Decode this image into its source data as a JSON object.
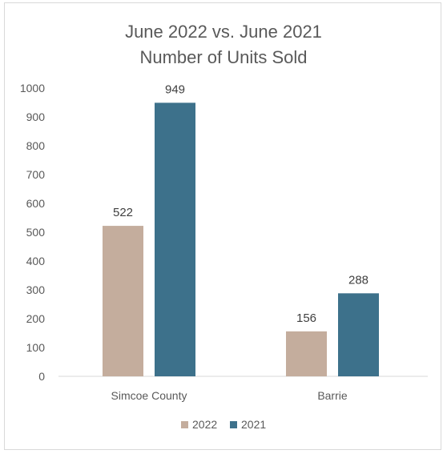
{
  "chart_data": {
    "type": "bar",
    "title": [
      "June 2022 vs. June 2021",
      "Number of Units Sold"
    ],
    "categories": [
      "Simcoe County",
      "Barrie"
    ],
    "series": [
      {
        "name": "2022",
        "values": [
          522,
          156
        ],
        "color": "#c4ad9d"
      },
      {
        "name": "2021",
        "values": [
          949,
          288
        ],
        "color": "#3d718b"
      }
    ],
    "ylim": [
      0,
      1000
    ],
    "yticks": [
      0,
      100,
      200,
      300,
      400,
      500,
      600,
      700,
      800,
      900,
      1000
    ],
    "xlabel": "",
    "ylabel": "",
    "grid": false,
    "legend": "bottom",
    "data_labels": true
  }
}
